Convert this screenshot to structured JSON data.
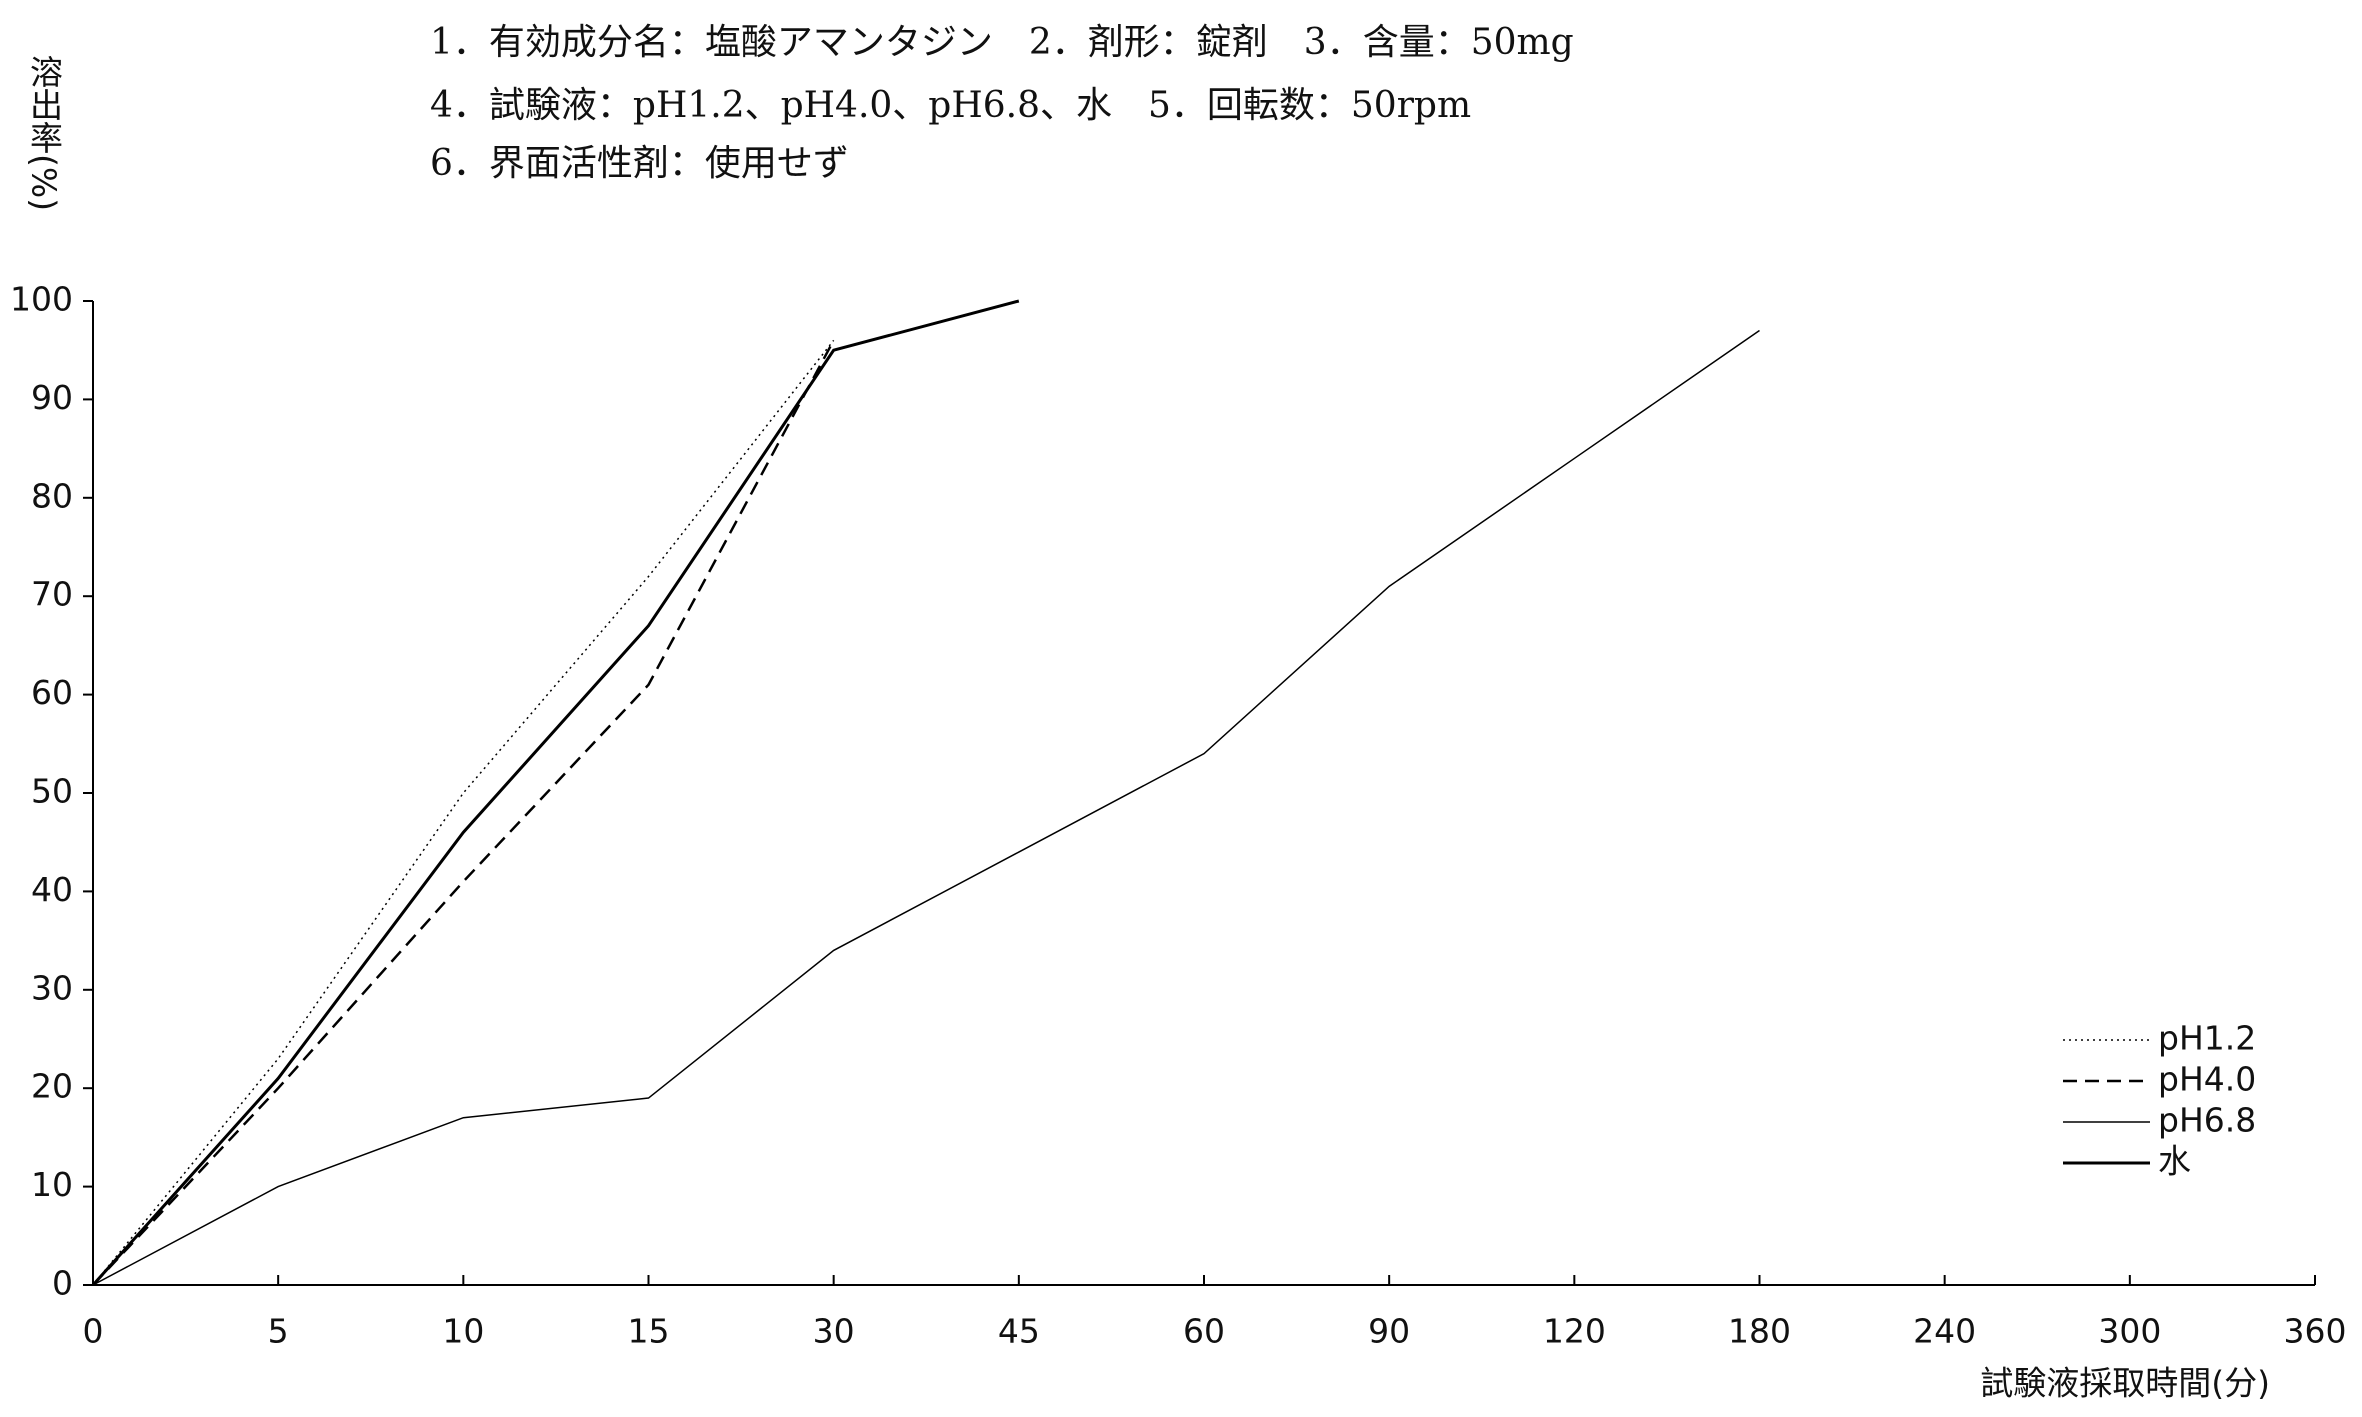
{
  "chart_data": {
    "type": "line",
    "title": [
      "1．有効成分名：塩酸アマンタジン　2．剤形：錠剤　3．含量：50mg",
      "4．試験液：pH1.2、pH4.0、pH6.8、水　5．回転数：50rpm",
      "6．界面活性剤：使用せず"
    ],
    "y_label": "溶出率(%)",
    "x_label": "試験液採取時間(分)",
    "categories": [
      "0",
      "5",
      "10",
      "15",
      "30",
      "45",
      "60",
      "90",
      "120",
      "180",
      "240",
      "300",
      "360"
    ],
    "series": [
      {
        "name": "pH1.2",
        "color": "#000000",
        "style": "dotted",
        "line_width": 1.5,
        "values": [
          0,
          23,
          50,
          72,
          96,
          null,
          null,
          null,
          null,
          null,
          null,
          null,
          null
        ]
      },
      {
        "name": "pH4.0",
        "color": "#000000",
        "style": "dashed",
        "line_width": 2.5,
        "values": [
          0,
          20,
          41,
          61,
          96,
          null,
          null,
          null,
          null,
          null,
          null,
          null,
          null
        ]
      },
      {
        "name": "pH6.8",
        "color": "#000000",
        "style": "solid",
        "line_width": 1.5,
        "values": [
          0,
          10,
          17,
          19,
          34,
          44,
          54,
          71,
          84,
          97,
          null,
          null,
          null
        ]
      },
      {
        "name": "水",
        "color": "#000000",
        "style": "solid",
        "line_width": 3,
        "values": [
          0,
          21,
          46,
          67,
          95,
          100,
          null,
          null,
          null,
          null,
          null,
          null,
          null
        ]
      }
    ],
    "ylim": [
      0,
      100
    ],
    "yticks": [
      0,
      10,
      20,
      30,
      40,
      50,
      60,
      70,
      80,
      90,
      100
    ],
    "grid": false,
    "legend": "lower right"
  }
}
